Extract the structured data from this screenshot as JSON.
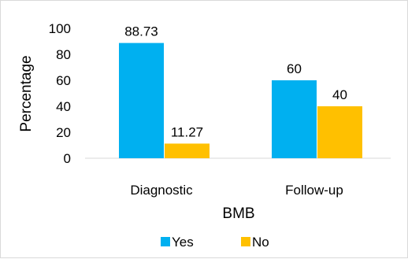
{
  "chart_data": {
    "type": "bar",
    "title": "",
    "xlabel": "BMB",
    "ylabel": "Percentage",
    "categories": [
      "Diagnostic",
      "Follow-up"
    ],
    "series": [
      {
        "name": "Yes",
        "color": "#00b0f0",
        "values": [
          88.73,
          60
        ],
        "labels": [
          "88.73",
          "60"
        ]
      },
      {
        "name": "No",
        "color": "#ffc000",
        "values": [
          11.27,
          40
        ],
        "labels": [
          "11.27",
          "40"
        ]
      }
    ],
    "ylim": [
      0,
      100
    ],
    "yticks": [
      "0",
      "20",
      "40",
      "60",
      "80",
      "100"
    ],
    "grid": false,
    "legend": "bottom"
  }
}
